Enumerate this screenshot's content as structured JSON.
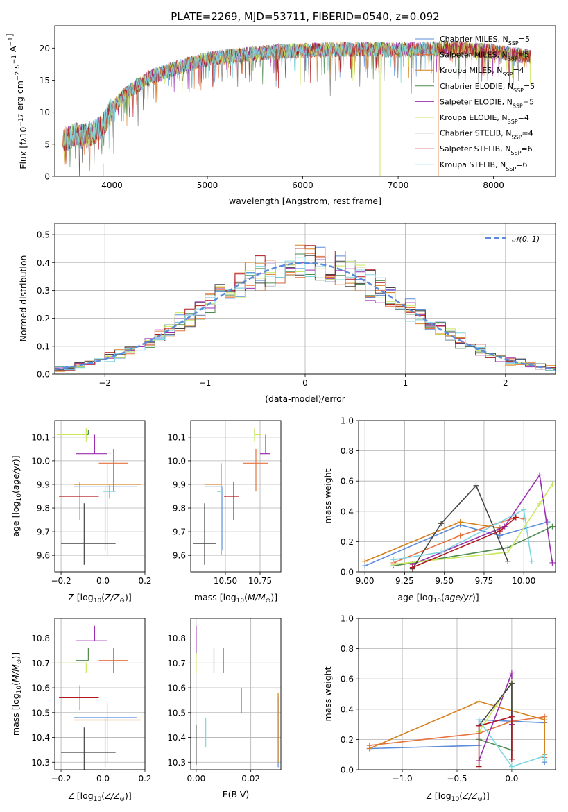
{
  "figure_title": "PLATE=2269, MJD=53711, FIBERID=0540, z=0.092",
  "colors": {
    "chabrier_miles": "#5b8bd9",
    "salpeter_miles": "#e6733f",
    "kroupa_miles": "#d6801f",
    "chabrier_elodie": "#4f8a4f",
    "salpeter_elodie": "#9a2fb0",
    "kroupa_elodie": "#c9e85f",
    "chabrier_stelib": "#444444",
    "salpeter_stelib": "#b0171f",
    "kroupa_stelib": "#7ed6e0",
    "normal_curve": "#5b8bd9",
    "grid": "#b0b0b0"
  },
  "chart_data": [
    {
      "id": "spectrum",
      "type": "line",
      "xlabel": "wavelength [Angstrom, rest frame]",
      "ylabel": "Flux [fλ10⁻¹⁷ erg cm⁻² s⁻¹ A⁻¹]",
      "xlim": [
        3400,
        8650
      ],
      "ylim": [
        0,
        23.5
      ],
      "xticks": [
        "4000",
        "5000",
        "6000",
        "7000",
        "8000"
      ],
      "yticks": [
        "0",
        "5",
        "10",
        "15",
        "20"
      ],
      "grid": false,
      "legend_position": "top-right",
      "series": [
        {
          "name": "Chabrier MILES, N_SSP=5",
          "label_pre": "Chabrier MILES, N",
          "sub": "SSP",
          "label_post": "=5"
        },
        {
          "name": "Salpeter MILES, N_SSP=5",
          "label_pre": "Salpeter MILES, N",
          "sub": "SSP",
          "label_post": "=5"
        },
        {
          "name": "Kroupa MILES, N_SSP=4",
          "label_pre": "Kroupa MILES, N",
          "sub": "SSP",
          "label_post": "=4"
        },
        {
          "name": "Chabrier ELODIE, N_SSP=5",
          "label_pre": "Chabrier ELODIE, N",
          "sub": "SSP",
          "label_post": "=5"
        },
        {
          "name": "Salpeter ELODIE, N_SSP=5",
          "label_pre": "Salpeter ELODIE, N",
          "sub": "SSP",
          "label_post": "=5"
        },
        {
          "name": "Kroupa ELODIE, N_SSP=4",
          "label_pre": "Kroupa ELODIE, N",
          "sub": "SSP",
          "label_post": "=4"
        },
        {
          "name": "Chabrier STELIB, N_SSP=4",
          "label_pre": "Chabrier STELIB, N",
          "sub": "SSP",
          "label_post": "=4"
        },
        {
          "name": "Salpeter STELIB, N_SSP=6",
          "label_pre": "Salpeter STELIB, N",
          "sub": "SSP",
          "label_post": "=6"
        },
        {
          "name": "Kroupa STELIB, N_SSP=6",
          "label_pre": "Kroupa STELIB, N",
          "sub": "SSP",
          "label_post": "=6"
        }
      ],
      "continuum": {
        "x": [
          3480,
          3600,
          3700,
          3800,
          3900,
          4000,
          4100,
          4200,
          4300,
          4400,
          4600,
          4800,
          5000,
          5200,
          5400,
          5600,
          5800,
          6000,
          6200,
          6400,
          6600,
          6800,
          7000,
          7200,
          7400,
          7600,
          7800,
          8000,
          8200,
          8400
        ],
        "y": [
          5.5,
          6.5,
          6.2,
          6.8,
          7.8,
          10.5,
          12.2,
          13.5,
          14.5,
          15.5,
          16.5,
          17.5,
          18.3,
          18.7,
          19.0,
          19.3,
          19.5,
          19.6,
          19.7,
          19.8,
          19.8,
          19.8,
          19.7,
          19.8,
          19.9,
          20.0,
          19.7,
          19.5,
          19.0,
          18.6
        ]
      }
    },
    {
      "id": "residuals",
      "type": "step-histogram",
      "xlabel": "(data-model)/error",
      "ylabel": "Normed distribution",
      "xlim": [
        -2.5,
        2.5
      ],
      "ylim": [
        0,
        0.54
      ],
      "xticks": [
        "−2",
        "−1",
        "0",
        "1",
        "2"
      ],
      "yticks": [
        "0.0",
        "0.1",
        "0.2",
        "0.3",
        "0.4",
        "0.5"
      ],
      "grid": true,
      "legend_position": "top-right",
      "legend_label": "𝒩(0, 1)",
      "bin_width": 0.1,
      "bin_start": -2.5,
      "bins": 50
    },
    {
      "id": "age_vs_Z",
      "type": "errorbar",
      "xlabel": "Z [log10(Z/Z⊙)]",
      "ylabel": "age  [log10(age/yr)]",
      "xlim": [
        -0.23,
        0.2
      ],
      "ylim": [
        9.53,
        10.17
      ],
      "xticks": [
        "−0.2",
        "0.0",
        "0.2"
      ],
      "yticks": [
        "9.6",
        "9.7",
        "9.8",
        "9.9",
        "10.0",
        "10.1"
      ],
      "grid": true,
      "points": [
        {
          "series": "chabrier_miles",
          "x": 0.01,
          "y": 9.89,
          "xerr": [
            0.15,
            0.15
          ],
          "yerr": [
            0.27,
            0.0
          ]
        },
        {
          "series": "salpeter_miles",
          "x": 0.05,
          "y": 9.99,
          "xerr": [
            0.07,
            0.07
          ],
          "yerr": [
            0.12,
            0.06
          ]
        },
        {
          "series": "kroupa_miles",
          "x": 0.02,
          "y": 9.9,
          "xerr": [
            0.16,
            0.16
          ],
          "yerr": [
            0.3,
            0.09
          ]
        },
        {
          "series": "chabrier_elodie",
          "x": -0.07,
          "y": 10.11,
          "xerr": [
            0.13,
            0.0
          ],
          "yerr": [
            0.0,
            0.02
          ]
        },
        {
          "series": "salpeter_elodie",
          "x": -0.04,
          "y": 10.03,
          "xerr": [
            0.09,
            0.06
          ],
          "yerr": [
            0.0,
            0.08
          ]
        },
        {
          "series": "kroupa_elodie",
          "x": -0.08,
          "y": 10.11,
          "xerr": [
            0.14,
            0.0
          ],
          "yerr": [
            0.03,
            0.03
          ]
        },
        {
          "series": "chabrier_stelib",
          "x": -0.09,
          "y": 9.65,
          "xerr": [
            0.11,
            0.15
          ],
          "yerr": [
            0.09,
            0.17
          ]
        },
        {
          "series": "salpeter_stelib",
          "x": -0.11,
          "y": 9.85,
          "xerr": [
            0.1,
            0.09
          ],
          "yerr": [
            0.1,
            0.06
          ]
        },
        {
          "series": "kroupa_stelib",
          "x": 0.03,
          "y": 9.87,
          "xerr": [
            0.03,
            0.03
          ],
          "yerr": [
            0.03,
            0.03
          ]
        }
      ]
    },
    {
      "id": "age_vs_mass",
      "type": "errorbar",
      "xlabel": "mass [log10(M/M⊙)]",
      "xlim": [
        10.25,
        10.9
      ],
      "ylim": [
        9.53,
        10.17
      ],
      "xticks": [
        "10.50",
        "10.75"
      ],
      "yticks": [
        "9.6",
        "9.7",
        "9.8",
        "9.9",
        "10.0",
        "10.1"
      ],
      "grid": true,
      "points": [
        {
          "series": "chabrier_miles",
          "x": 10.48,
          "y": 9.89,
          "xerr": [
            0.13,
            0.0
          ],
          "yerr": [
            0.27,
            0.0
          ]
        },
        {
          "series": "salpeter_miles",
          "x": 10.72,
          "y": 9.99,
          "xerr": [
            0.09,
            0.09
          ],
          "yerr": [
            0.12,
            0.06
          ]
        },
        {
          "series": "kroupa_miles",
          "x": 10.47,
          "y": 9.9,
          "xerr": [
            0.12,
            0.0
          ],
          "yerr": [
            0.3,
            0.09
          ]
        },
        {
          "series": "chabrier_elodie",
          "x": 10.71,
          "y": 10.11,
          "xerr": [
            0.0,
            0.04
          ],
          "yerr": [
            0.0,
            0.02
          ]
        },
        {
          "series": "salpeter_elodie",
          "x": 10.79,
          "y": 10.03,
          "xerr": [
            0.04,
            0.03
          ],
          "yerr": [
            0.0,
            0.08
          ]
        },
        {
          "series": "kroupa_elodie",
          "x": 10.71,
          "y": 10.11,
          "xerr": [
            0.0,
            0.05
          ],
          "yerr": [
            0.03,
            0.03
          ]
        },
        {
          "series": "chabrier_stelib",
          "x": 10.35,
          "y": 9.65,
          "xerr": [
            0.08,
            0.08
          ],
          "yerr": [
            0.09,
            0.17
          ]
        },
        {
          "series": "salpeter_stelib",
          "x": 10.56,
          "y": 9.85,
          "xerr": [
            0.07,
            0.04
          ],
          "yerr": [
            0.1,
            0.06
          ]
        },
        {
          "series": "kroupa_stelib",
          "x": 10.48,
          "y": 9.87,
          "xerr": [
            0.04,
            0.0
          ],
          "yerr": [
            0.0,
            0.0
          ]
        }
      ]
    },
    {
      "id": "mass_weight_vs_age",
      "type": "line",
      "xlabel": "age  [log10(age/yr)]",
      "ylabel": "mass weight",
      "xlim": [
        8.96,
        10.2
      ],
      "ylim": [
        0,
        1.0
      ],
      "xticks": [
        "9.00",
        "9.25",
        "9.50",
        "9.75",
        "10.00"
      ],
      "yticks": [
        "0.0",
        "0.2",
        "0.4",
        "0.6",
        "0.8",
        "1.0"
      ],
      "grid": true,
      "series": [
        {
          "series": "chabrier_miles",
          "x": [
            9.0,
            9.6,
            9.85,
            10.15
          ],
          "y": [
            0.04,
            0.31,
            0.24,
            0.33
          ]
        },
        {
          "series": "salpeter_miles",
          "x": [
            9.18,
            9.6,
            9.95,
            10.0
          ],
          "y": [
            0.06,
            0.24,
            0.36,
            0.35
          ]
        },
        {
          "series": "kroupa_miles",
          "x": [
            9.0,
            9.6,
            9.85
          ],
          "y": [
            0.07,
            0.33,
            0.29
          ]
        },
        {
          "series": "chabrier_elodie",
          "x": [
            9.18,
            9.9,
            10.18
          ],
          "y": [
            0.04,
            0.16,
            0.3
          ]
        },
        {
          "series": "salpeter_elodie",
          "x": [
            9.3,
            9.88,
            10.1,
            10.18
          ],
          "y": [
            0.05,
            0.3,
            0.64,
            0.06
          ]
        },
        {
          "series": "kroupa_elodie",
          "x": [
            9.18,
            9.9,
            10.1,
            10.18
          ],
          "y": [
            0.05,
            0.13,
            0.45,
            0.58
          ]
        },
        {
          "series": "chabrier_stelib",
          "x": [
            9.3,
            9.48,
            9.7,
            9.9
          ],
          "y": [
            0.02,
            0.32,
            0.57,
            0.07
          ]
        },
        {
          "series": "salpeter_stelib",
          "x": [
            9.3,
            9.85,
            9.95
          ],
          "y": [
            0.03,
            0.27,
            0.36
          ]
        },
        {
          "series": "kroupa_stelib",
          "x": [
            9.18,
            9.48,
            10.0,
            10.05
          ],
          "y": [
            0.08,
            0.13,
            0.41,
            0.07
          ]
        }
      ]
    },
    {
      "id": "mass_vs_Z",
      "type": "errorbar",
      "xlabel": "Z [log10(Z/Z⊙)]",
      "ylabel": "mass [log10(M/M⊙)]",
      "xlim": [
        -0.23,
        0.2
      ],
      "ylim": [
        10.27,
        10.88
      ],
      "xticks": [
        "−0.2",
        "0.0",
        "0.2"
      ],
      "yticks": [
        "10.3",
        "10.4",
        "10.5",
        "10.6",
        "10.7",
        "10.8"
      ],
      "grid": true,
      "points": [
        {
          "series": "chabrier_miles",
          "x": 0.01,
          "y": 10.48,
          "xerr": [
            0.15,
            0.15
          ],
          "yerr": [
            0.2,
            0.0
          ]
        },
        {
          "series": "salpeter_miles",
          "x": 0.05,
          "y": 10.71,
          "xerr": [
            0.07,
            0.07
          ],
          "yerr": [
            0.05,
            0.05
          ]
        },
        {
          "series": "kroupa_miles",
          "x": 0.02,
          "y": 10.47,
          "xerr": [
            0.16,
            0.16
          ],
          "yerr": [
            0.17,
            0.07
          ]
        },
        {
          "series": "chabrier_elodie",
          "x": -0.07,
          "y": 10.71,
          "xerr": [
            0.06,
            0.0
          ],
          "yerr": [
            0.0,
            0.05
          ]
        },
        {
          "series": "salpeter_elodie",
          "x": -0.04,
          "y": 10.79,
          "xerr": [
            0.09,
            0.06
          ],
          "yerr": [
            0.0,
            0.06
          ]
        },
        {
          "series": "kroupa_elodie",
          "x": -0.08,
          "y": 10.7,
          "xerr": [
            0.14,
            0.0
          ],
          "yerr": [
            0.04,
            0.0
          ]
        },
        {
          "series": "chabrier_stelib",
          "x": -0.09,
          "y": 10.34,
          "xerr": [
            0.11,
            0.15
          ],
          "yerr": [
            0.07,
            0.1
          ]
        },
        {
          "series": "salpeter_stelib",
          "x": -0.11,
          "y": 10.56,
          "xerr": [
            0.1,
            0.09
          ],
          "yerr": [
            0.05,
            0.05
          ]
        },
        {
          "series": "kroupa_stelib",
          "x": 0.03,
          "y": 10.48,
          "xerr": [
            0.0,
            0.0
          ],
          "yerr": [
            0.0,
            0.0
          ]
        }
      ]
    },
    {
      "id": "mass_vs_ebv",
      "type": "errorbar",
      "xlabel": "E(B-V)",
      "xlim": [
        -0.002,
        0.031
      ],
      "ylim": [
        10.27,
        10.88
      ],
      "xticks": [
        "0.00",
        "0.02"
      ],
      "yticks": [
        "10.3",
        "10.4",
        "10.5",
        "10.6",
        "10.7",
        "10.8"
      ],
      "grid": true,
      "points": [
        {
          "series": "chabrier_miles",
          "x": 0.03,
          "y": 10.42,
          "xerr": [
            0,
            0
          ],
          "yerr": [
            0.14,
            0.14
          ]
        },
        {
          "series": "salpeter_miles",
          "x": 0.01,
          "y": 10.71,
          "xerr": [
            0,
            0
          ],
          "yerr": [
            0.05,
            0.05
          ]
        },
        {
          "series": "kroupa_miles",
          "x": 0.03,
          "y": 10.44,
          "xerr": [
            0,
            0
          ],
          "yerr": [
            0.14,
            0.14
          ]
        },
        {
          "series": "chabrier_elodie",
          "x": 0.0065,
          "y": 10.71,
          "xerr": [
            0,
            0
          ],
          "yerr": [
            0.05,
            0.05
          ]
        },
        {
          "series": "salpeter_elodie",
          "x": 0.0,
          "y": 10.79,
          "xerr": [
            0,
            0
          ],
          "yerr": [
            0.06,
            0.06
          ]
        },
        {
          "series": "kroupa_elodie",
          "x": 0.0,
          "y": 10.7,
          "xerr": [
            0,
            0
          ],
          "yerr": [
            0.04,
            0.04
          ]
        },
        {
          "series": "chabrier_stelib",
          "x": 0.0,
          "y": 10.37,
          "xerr": [
            0,
            0
          ],
          "yerr": [
            0.08,
            0.08
          ]
        },
        {
          "series": "salpeter_stelib",
          "x": 0.0165,
          "y": 10.55,
          "xerr": [
            0,
            0
          ],
          "yerr": [
            0.05,
            0.05
          ]
        },
        {
          "series": "kroupa_stelib",
          "x": 0.0035,
          "y": 10.42,
          "xerr": [
            0,
            0
          ],
          "yerr": [
            0.06,
            0.06
          ]
        }
      ]
    },
    {
      "id": "mass_weight_vs_Z",
      "type": "line",
      "xlabel": "Z [log10(Z/Z⊙)]",
      "ylabel": "mass weight",
      "xlim": [
        -1.4,
        0.4
      ],
      "ylim": [
        0,
        1.0
      ],
      "xticks": [
        "−1.0",
        "−0.5",
        "0.0"
      ],
      "yticks": [
        "0.0",
        "0.2",
        "0.4",
        "0.6",
        "0.8",
        "1.0"
      ],
      "grid": true,
      "series": [
        {
          "series": "chabrier_miles",
          "x": [
            -1.3,
            -0.3,
            -0.3,
            0.3,
            0.3
          ],
          "y": [
            0.14,
            0.16,
            0.33,
            0.31,
            0.05
          ]
        },
        {
          "series": "salpeter_miles",
          "x": [
            -1.3,
            -0.3,
            0.0,
            0.3,
            0.3
          ],
          "y": [
            0.16,
            0.24,
            0.32,
            0.35,
            0.08
          ]
        },
        {
          "series": "kroupa_miles",
          "x": [
            -1.3,
            -0.3,
            0.3,
            0.3
          ],
          "y": [
            0.14,
            0.45,
            0.33,
            0.1
          ]
        },
        {
          "series": "chabrier_elodie",
          "x": [
            -0.3,
            0.0,
            0.0
          ],
          "y": [
            0.2,
            0.13,
            0.57
          ]
        },
        {
          "series": "salpeter_elodie",
          "x": [
            -0.3,
            0.0,
            0.0
          ],
          "y": [
            0.06,
            0.64,
            0.3
          ]
        },
        {
          "series": "kroupa_elodie",
          "x": [
            -0.3,
            0.0,
            0.0
          ],
          "y": [
            0.25,
            0.58,
            0.4
          ]
        },
        {
          "series": "chabrier_stelib",
          "x": [
            -0.3,
            0.0,
            0.0
          ],
          "y": [
            0.29,
            0.57,
            0.07
          ]
        },
        {
          "series": "salpeter_stelib",
          "x": [
            -0.3,
            -0.3,
            0.0,
            0.0
          ],
          "y": [
            0.02,
            0.29,
            0.35,
            0.07
          ]
        },
        {
          "series": "kroupa_stelib",
          "x": [
            -0.3,
            0.0,
            0.3,
            0.3
          ],
          "y": [
            0.33,
            0.02,
            0.09,
            0.07
          ]
        }
      ]
    }
  ]
}
